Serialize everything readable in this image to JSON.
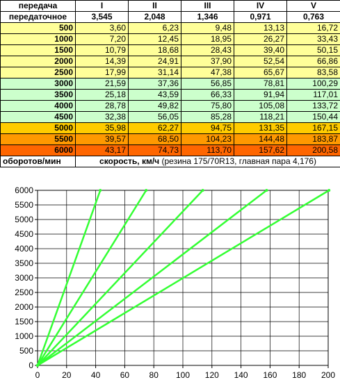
{
  "table": {
    "header_label": "передача",
    "gears": [
      "I",
      "II",
      "III",
      "IV",
      "V"
    ],
    "ratio_label": "передаточное",
    "ratios": [
      "3,545",
      "2,048",
      "1,346",
      "0,971",
      "0,763"
    ],
    "rows": [
      {
        "rpm": "500",
        "band": "yellow",
        "speeds": [
          "3,60",
          "6,23",
          "9,48",
          "13,13",
          "16,72"
        ]
      },
      {
        "rpm": "1000",
        "band": "yellow",
        "speeds": [
          "7,20",
          "12,45",
          "18,95",
          "26,27",
          "33,43"
        ]
      },
      {
        "rpm": "1500",
        "band": "yellow",
        "speeds": [
          "10,79",
          "18,68",
          "28,43",
          "39,40",
          "50,15"
        ]
      },
      {
        "rpm": "2000",
        "band": "yellow",
        "speeds": [
          "14,39",
          "24,91",
          "37,90",
          "52,54",
          "66,86"
        ]
      },
      {
        "rpm": "2500",
        "band": "yellow",
        "speeds": [
          "17,99",
          "31,14",
          "47,38",
          "65,67",
          "83,58"
        ]
      },
      {
        "rpm": "3000",
        "band": "green",
        "speeds": [
          "21,59",
          "37,36",
          "56,85",
          "78,81",
          "100,29"
        ]
      },
      {
        "rpm": "3500",
        "band": "green",
        "speeds": [
          "25,18",
          "43,59",
          "66,33",
          "91,94",
          "117,01"
        ]
      },
      {
        "rpm": "4000",
        "band": "green",
        "speeds": [
          "28,78",
          "49,82",
          "75,80",
          "105,08",
          "133,72"
        ]
      },
      {
        "rpm": "4500",
        "band": "green",
        "speeds": [
          "32,38",
          "56,05",
          "85,28",
          "118,21",
          "150,44"
        ]
      },
      {
        "rpm": "5000",
        "band": "gold",
        "speeds": [
          "35,98",
          "62,27",
          "94,75",
          "131,35",
          "167,15"
        ]
      },
      {
        "rpm": "5500",
        "band": "orange",
        "speeds": [
          "39,57",
          "68,50",
          "104,23",
          "144,48",
          "183,87"
        ]
      },
      {
        "rpm": "6000",
        "band": "red",
        "speeds": [
          "43,17",
          "74,73",
          "113,70",
          "157,62",
          "200,58"
        ]
      }
    ],
    "footer_left": "оборотов/мин",
    "footer_note_bold": "скорость, км/ч",
    "footer_note_rest": " (резина 175/70R13, главная пара 4,176)"
  },
  "band_colors": {
    "yellow": "#ffff99",
    "green": "#ccffcc",
    "gold": "#ffcc00",
    "orange": "#ff9900",
    "red": "#ff6600"
  },
  "chart_data": {
    "type": "line",
    "xlim": [
      0,
      200
    ],
    "ylim": [
      0,
      6000
    ],
    "xticks": [
      0,
      20,
      40,
      60,
      80,
      100,
      120,
      140,
      160,
      180,
      200
    ],
    "yticks": [
      0,
      500,
      1000,
      1500,
      2000,
      2500,
      3000,
      3500,
      4000,
      4500,
      5000,
      5500,
      6000
    ],
    "grid": true,
    "line_color": "#33ff33",
    "series": [
      {
        "x": [
          0,
          43.17
        ],
        "y": [
          0,
          6000
        ]
      },
      {
        "x": [
          0,
          74.73
        ],
        "y": [
          0,
          6000
        ]
      },
      {
        "x": [
          0,
          113.7
        ],
        "y": [
          0,
          6000
        ]
      },
      {
        "x": [
          0,
          157.62
        ],
        "y": [
          0,
          6000
        ]
      },
      {
        "x": [
          0,
          200.58
        ],
        "y": [
          0,
          6000
        ]
      }
    ]
  }
}
